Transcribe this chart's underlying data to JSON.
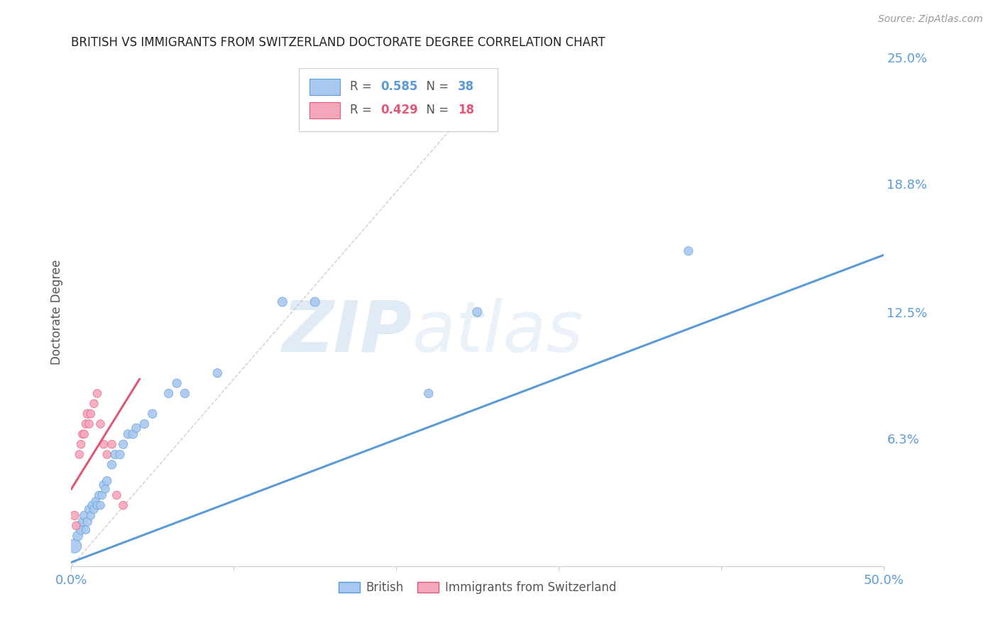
{
  "title": "BRITISH VS IMMIGRANTS FROM SWITZERLAND DOCTORATE DEGREE CORRELATION CHART",
  "source": "Source: ZipAtlas.com",
  "ylabel": "Doctorate Degree",
  "watermark": "ZIPatlas",
  "xlim": [
    0,
    0.5
  ],
  "ylim": [
    0,
    0.25
  ],
  "R_british": 0.585,
  "N_british": 38,
  "R_swiss": 0.429,
  "N_swiss": 18,
  "british_color": "#A8C8F0",
  "swiss_color": "#F5A8BC",
  "british_line_color": "#5B9BD5",
  "swiss_line_color": "#E05878",
  "background_color": "#FFFFFF",
  "grid_color": "#DDDDDD",
  "title_color": "#222222",
  "axis_label_color": "#555555",
  "right_axis_color": "#5B9BD5",
  "british_scatter_x": [
    0.002,
    0.004,
    0.005,
    0.006,
    0.007,
    0.008,
    0.009,
    0.01,
    0.011,
    0.012,
    0.013,
    0.014,
    0.015,
    0.016,
    0.017,
    0.018,
    0.019,
    0.02,
    0.021,
    0.022,
    0.025,
    0.027,
    0.03,
    0.032,
    0.035,
    0.038,
    0.04,
    0.045,
    0.05,
    0.06,
    0.065,
    0.07,
    0.09,
    0.13,
    0.15,
    0.22,
    0.38,
    0.25
  ],
  "british_scatter_y": [
    0.01,
    0.015,
    0.02,
    0.018,
    0.022,
    0.025,
    0.018,
    0.022,
    0.028,
    0.025,
    0.03,
    0.028,
    0.032,
    0.03,
    0.035,
    0.03,
    0.035,
    0.04,
    0.038,
    0.042,
    0.05,
    0.055,
    0.055,
    0.06,
    0.065,
    0.065,
    0.068,
    0.07,
    0.075,
    0.085,
    0.09,
    0.085,
    0.095,
    0.13,
    0.13,
    0.085,
    0.155,
    0.125
  ],
  "british_scatter_size": [
    200,
    100,
    80,
    90,
    80,
    80,
    70,
    80,
    80,
    70,
    80,
    70,
    70,
    70,
    70,
    70,
    70,
    80,
    70,
    80,
    80,
    80,
    80,
    80,
    80,
    80,
    80,
    80,
    80,
    80,
    80,
    80,
    80,
    90,
    90,
    80,
    80,
    90
  ],
  "swiss_scatter_x": [
    0.002,
    0.003,
    0.005,
    0.006,
    0.007,
    0.008,
    0.009,
    0.01,
    0.011,
    0.012,
    0.014,
    0.016,
    0.018,
    0.02,
    0.022,
    0.025,
    0.028,
    0.032
  ],
  "swiss_scatter_y": [
    0.025,
    0.02,
    0.055,
    0.06,
    0.065,
    0.065,
    0.07,
    0.075,
    0.07,
    0.075,
    0.08,
    0.085,
    0.07,
    0.06,
    0.055,
    0.06,
    0.035,
    0.03
  ],
  "swiss_scatter_size": [
    80,
    70,
    70,
    70,
    70,
    70,
    70,
    80,
    70,
    70,
    70,
    70,
    70,
    70,
    70,
    70,
    70,
    70
  ],
  "british_regline_x": [
    0.0,
    0.5
  ],
  "british_regline_y": [
    0.002,
    0.153
  ],
  "swiss_regline_x": [
    0.0,
    0.042
  ],
  "swiss_regline_y": [
    0.038,
    0.092
  ],
  "dash_line_x": [
    0.25,
    0.0
  ],
  "dash_line_y": [
    0.23,
    0.0
  ]
}
